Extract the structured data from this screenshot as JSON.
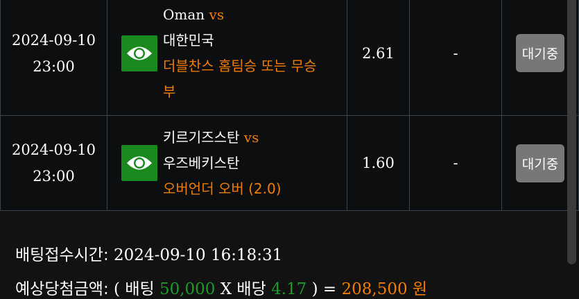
{
  "bets": [
    {
      "date": "2024-09-10",
      "time": "23:00",
      "home": "Oman",
      "vs": "vs",
      "away": "대한민국",
      "pick": "더블찬스 홈팀승 또는 무승부",
      "odds": "2.61",
      "result": "-",
      "status": "대기중"
    },
    {
      "date": "2024-09-10",
      "time": "23:00",
      "home": "키르기즈스탄",
      "vs": "vs",
      "away": "우즈베키스탄",
      "pick": "오버언더 오버 (2.0)",
      "odds": "1.60",
      "result": "-",
      "status": "대기중"
    }
  ],
  "summary": {
    "time_label": "배팅접수시간:",
    "time_value": "2024-09-10 16:18:31",
    "amount_label": "예상당첨금액:",
    "open": "( 배팅",
    "stake": "50,000",
    "times": "X 배당",
    "total_odds": "4.17",
    "close": ") =",
    "payout": "208,500 원"
  },
  "colors": {
    "accent": "#f07c00",
    "eye_bg": "#1a8a1e",
    "button": "#777777"
  }
}
